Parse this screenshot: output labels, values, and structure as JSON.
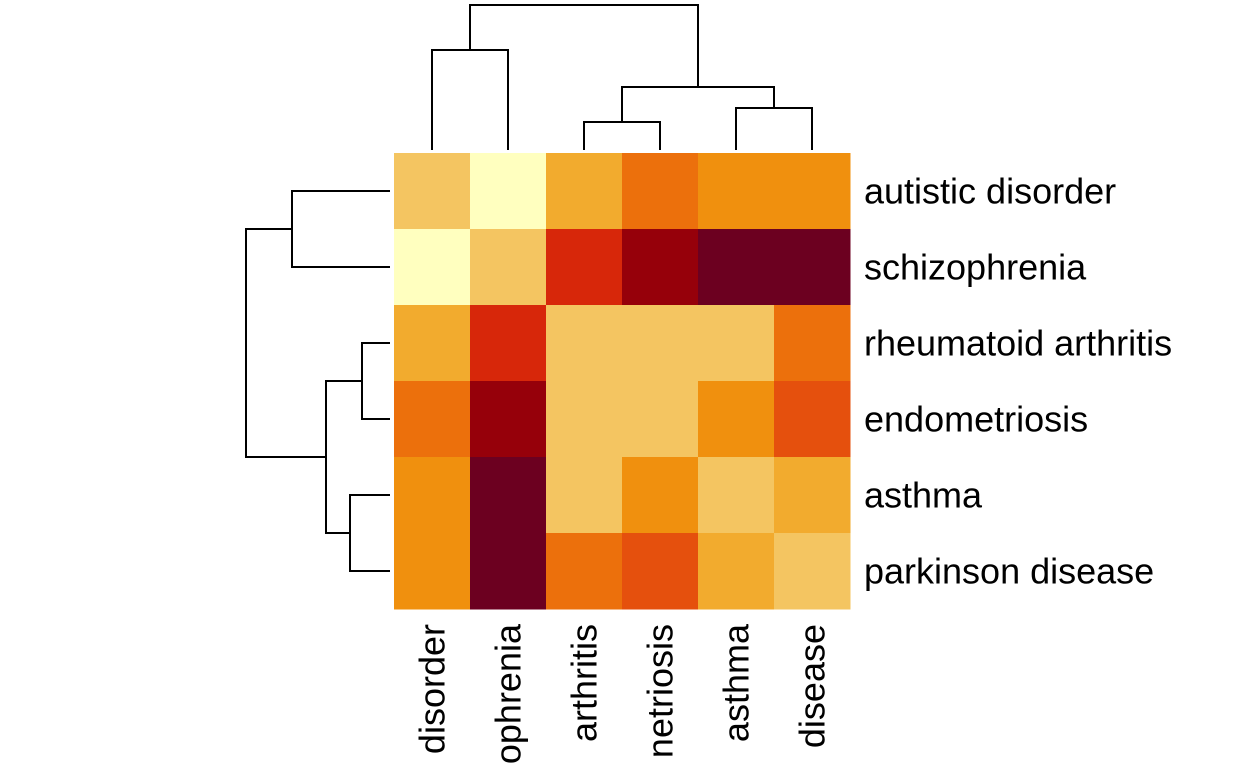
{
  "chart_data": {
    "type": "heatmap",
    "rows": [
      "autistic disorder",
      "schizophrenia",
      "rheumatoid arthritis",
      "endometriosis",
      "asthma",
      "parkinson disease"
    ],
    "columns": [
      "disorder",
      "ophrenia",
      "arthritis",
      "netriosis",
      "asthma",
      "disease"
    ],
    "color_scale": [
      "#ffffbf",
      "#f4c561",
      "#f2ab2e",
      "#f0900e",
      "#ec700c",
      "#e5500d",
      "#d7270a",
      "#96000a",
      "#6c0020"
    ],
    "levels": [
      [
        1,
        0,
        2,
        4,
        3,
        3
      ],
      [
        0,
        1,
        6,
        7,
        8,
        8
      ],
      [
        2,
        6,
        1,
        1,
        1,
        4
      ],
      [
        4,
        7,
        1,
        1,
        3,
        5
      ],
      [
        3,
        8,
        1,
        3,
        1,
        2
      ],
      [
        3,
        8,
        4,
        5,
        2,
        1
      ]
    ],
    "row_dendrogram": true,
    "column_dendrogram": true,
    "legend": "none"
  }
}
